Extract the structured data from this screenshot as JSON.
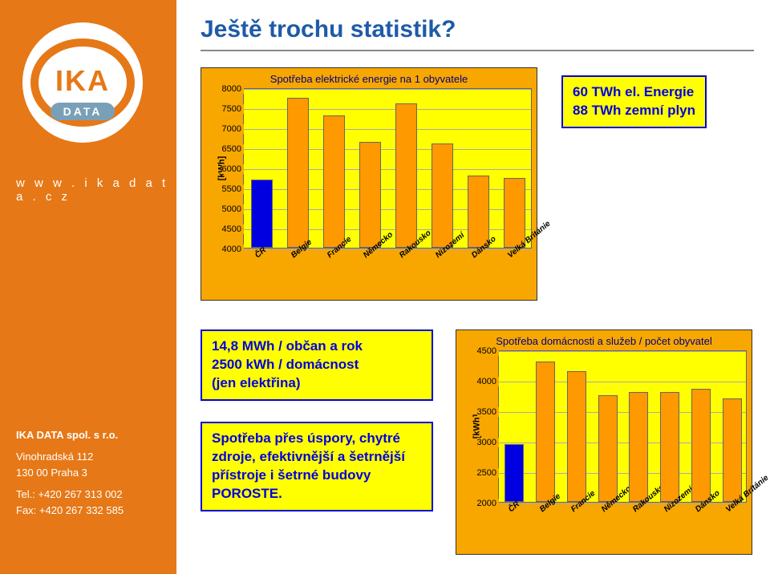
{
  "sidebar": {
    "logo_main": "IKA",
    "logo_sub": "DATA",
    "url": "w w w . i k a d a t a . c z",
    "company_name": "IKA DATA spol. s r.o.",
    "addr1": "Vinohradská 112",
    "addr2": "130 00 Praha 3",
    "tel": "Tel.: +420 267 313 002",
    "fax": "Fax: +420 267 332 585"
  },
  "title": "Ještě trochu statistik?",
  "callout_top": {
    "line1": "60 TWh el. Energie",
    "line2": "88 TWh zemní plyn"
  },
  "callout_mid": {
    "line1": "14,8 MWh / občan a rok",
    "line2": "2500 kWh / domácnost",
    "line3": "(jen elektřina)"
  },
  "callout_bot": {
    "line1": "Spotřeba přes úspory, chytré",
    "line2": "zdroje, efektivnější a šetrnější",
    "line3": "přístroje i šetrné budovy",
    "line4": "POROSTE."
  },
  "chart1": {
    "title": "Spotřeba elektrické energie na 1 obyvatele",
    "ylabel": "[kWh]",
    "ylim": [
      4000,
      8000
    ],
    "yticks": [
      4000,
      4500,
      5000,
      5500,
      6000,
      6500,
      7000,
      7500,
      8000
    ],
    "categories": [
      "ČR",
      "Belgie",
      "Francie",
      "Německo",
      "Rakousko",
      "Nizozemí",
      "Dánsko",
      "Velká Británie"
    ],
    "values": [
      5700,
      7750,
      7300,
      6650,
      7600,
      6600,
      5800,
      5750
    ],
    "highlight_index": 0,
    "bar_color": "#ff9900",
    "highlight_color": "#0000e0",
    "bg": "#ffff00",
    "panel_bg": "#f7a700"
  },
  "chart2": {
    "title": "Spotřeba domácnosti a služeb / počet obyvatel",
    "ylabel": "[kWh]",
    "ylim": [
      2000,
      4500
    ],
    "yticks": [
      2000,
      2500,
      3000,
      3500,
      4000,
      4500
    ],
    "categories": [
      "ČR",
      "Belgie",
      "Francie",
      "Německo",
      "Rakousko",
      "Nizozemí",
      "Dánsko",
      "Velká Británie"
    ],
    "values": [
      2950,
      4300,
      4150,
      3750,
      3800,
      3800,
      3850,
      3700
    ],
    "highlight_index": 0,
    "bar_color": "#ff9900",
    "highlight_color": "#0000e0",
    "bg": "#ffff00",
    "panel_bg": "#f7a700"
  }
}
